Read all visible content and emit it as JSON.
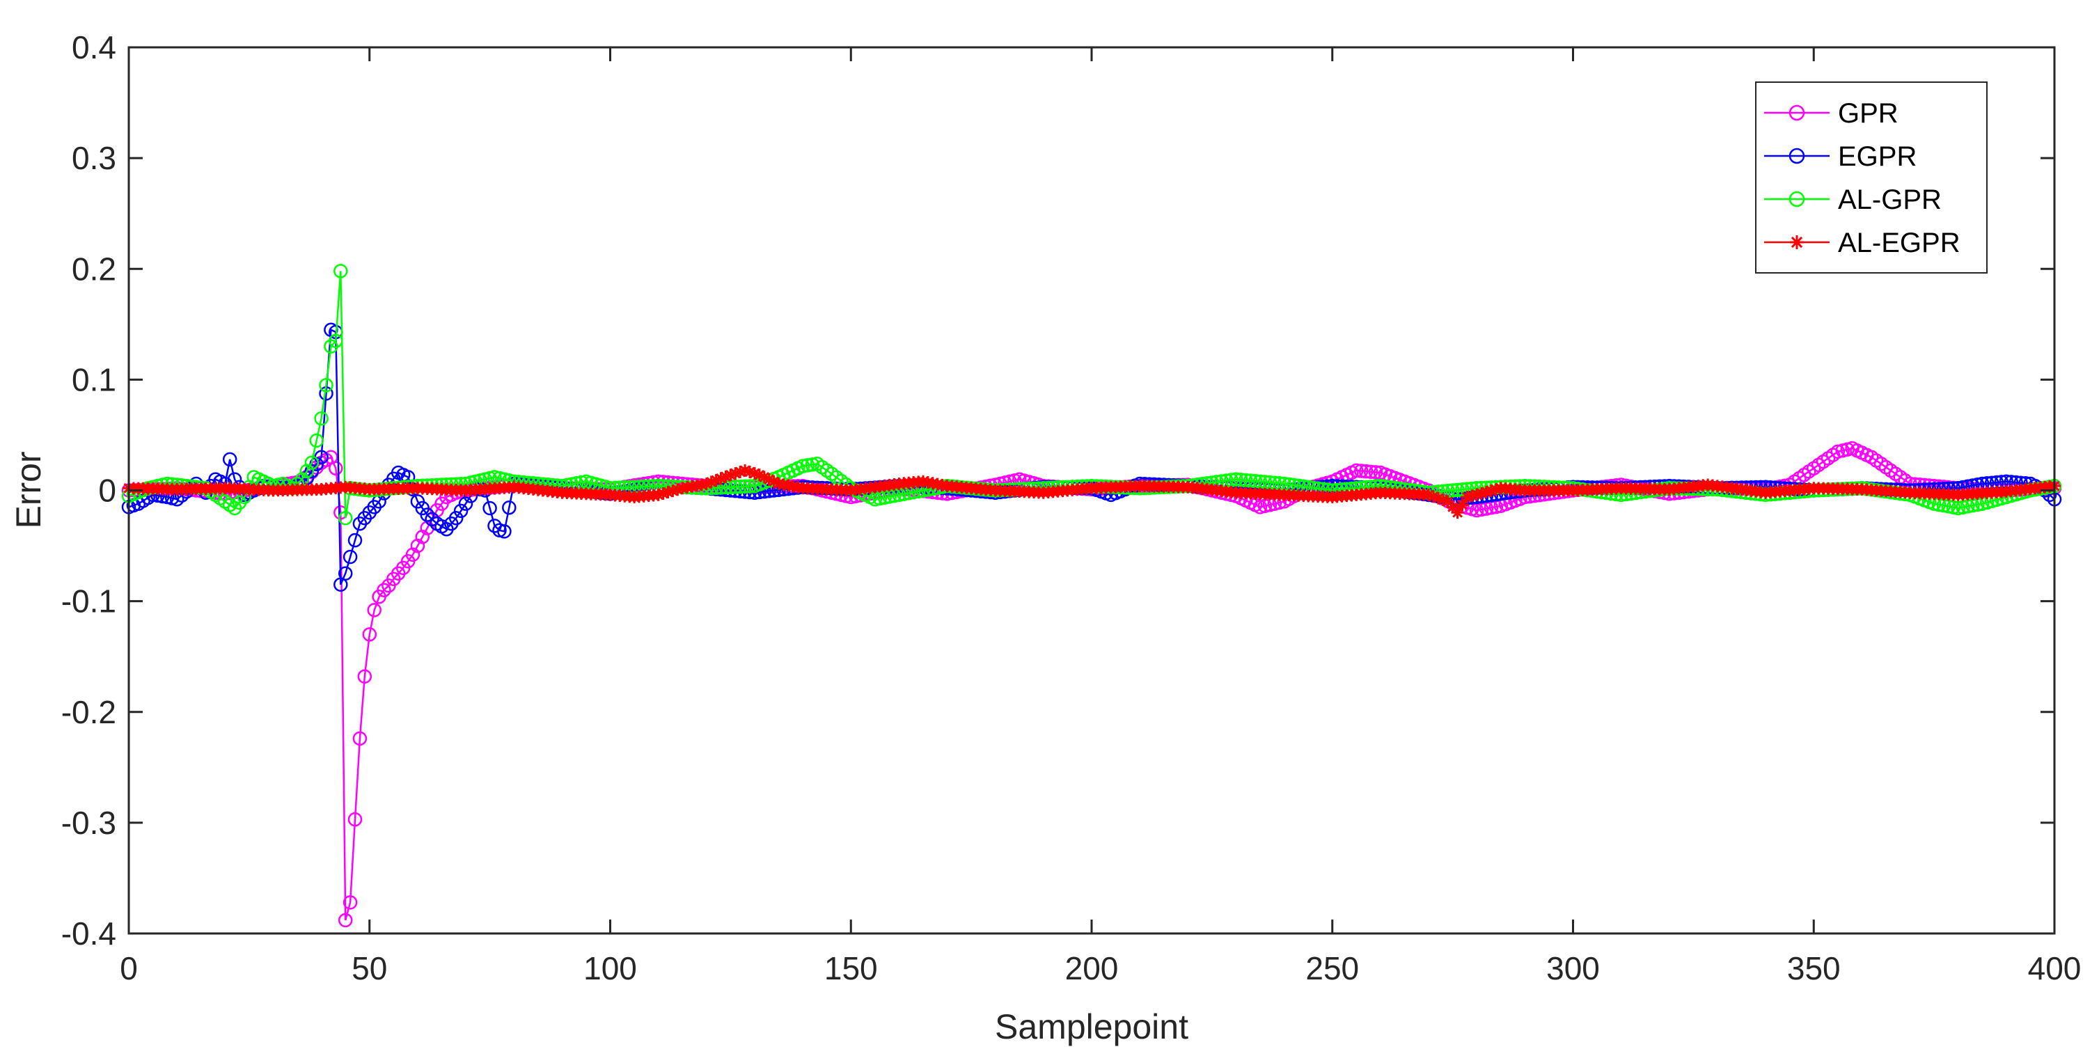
{
  "chart_data": {
    "type": "line",
    "title": "",
    "xlabel": "Samplepoint",
    "ylabel": "Error",
    "xlim": [
      0,
      400
    ],
    "ylim": [
      -0.4,
      0.4
    ],
    "xticks": [
      0,
      50,
      100,
      150,
      200,
      250,
      300,
      350,
      400
    ],
    "yticks": [
      -0.4,
      -0.3,
      -0.2,
      -0.1,
      0,
      0.1,
      0.2,
      0.3,
      0.4
    ],
    "xtick_labels": [
      "0",
      "50",
      "100",
      "150",
      "200",
      "250",
      "300",
      "350",
      "400"
    ],
    "ytick_labels": [
      "-0.4",
      "-0.3",
      "-0.2",
      "-0.1",
      "0",
      "0.1",
      "0.2",
      "0.3",
      "0.4"
    ],
    "grid": false,
    "legend_position": "top-right",
    "series": [
      {
        "name": "GPR",
        "color": "#ff00ff",
        "marker": "circle",
        "points": [
          [
            0,
            0
          ],
          [
            10,
            0.002
          ],
          [
            20,
            -0.003
          ],
          [
            30,
            0.004
          ],
          [
            36,
            0.008
          ],
          [
            40,
            0.025
          ],
          [
            42,
            0.03
          ],
          [
            43,
            0.02
          ],
          [
            44,
            -0.02
          ],
          [
            45,
            -0.388
          ],
          [
            46,
            -0.372
          ],
          [
            47,
            -0.297
          ],
          [
            48,
            -0.224
          ],
          [
            49,
            -0.168
          ],
          [
            50,
            -0.13
          ],
          [
            51,
            -0.108
          ],
          [
            52,
            -0.096
          ],
          [
            53,
            -0.09
          ],
          [
            54,
            -0.086
          ],
          [
            55,
            -0.08
          ],
          [
            56,
            -0.075
          ],
          [
            57,
            -0.07
          ],
          [
            58,
            -0.064
          ],
          [
            59,
            -0.058
          ],
          [
            60,
            -0.05
          ],
          [
            61,
            -0.042
          ],
          [
            62,
            -0.034
          ],
          [
            63,
            -0.026
          ],
          [
            64,
            -0.018
          ],
          [
            65,
            -0.012
          ],
          [
            66,
            -0.006
          ],
          [
            68,
            -0.002
          ],
          [
            70,
            0
          ],
          [
            80,
            0.005
          ],
          [
            90,
            0.002
          ],
          [
            100,
            0.001
          ],
          [
            110,
            0.008
          ],
          [
            120,
            0.004
          ],
          [
            130,
            0.003
          ],
          [
            140,
            0.004
          ],
          [
            150,
            -0.006
          ],
          [
            160,
            0.002
          ],
          [
            170,
            -0.003
          ],
          [
            180,
            0.005
          ],
          [
            185,
            0.01
          ],
          [
            190,
            0.004
          ],
          [
            200,
            0.001
          ],
          [
            210,
            0.004
          ],
          [
            220,
            0.005
          ],
          [
            230,
            -0.005
          ],
          [
            235,
            -0.015
          ],
          [
            240,
            -0.01
          ],
          [
            245,
            0.002
          ],
          [
            250,
            0.008
          ],
          [
            255,
            0.018
          ],
          [
            260,
            0.016
          ],
          [
            265,
            0.008
          ],
          [
            270,
            0
          ],
          [
            275,
            -0.012
          ],
          [
            280,
            -0.018
          ],
          [
            285,
            -0.014
          ],
          [
            290,
            -0.006
          ],
          [
            300,
            0
          ],
          [
            310,
            0.005
          ],
          [
            320,
            -0.003
          ],
          [
            330,
            0.002
          ],
          [
            340,
            0.001
          ],
          [
            345,
            0.005
          ],
          [
            350,
            0.02
          ],
          [
            355,
            0.035
          ],
          [
            358,
            0.038
          ],
          [
            362,
            0.03
          ],
          [
            366,
            0.018
          ],
          [
            370,
            0.006
          ],
          [
            380,
            0.002
          ],
          [
            390,
            0
          ],
          [
            400,
            0.002
          ]
        ]
      },
      {
        "name": "EGPR",
        "color": "#0000ff",
        "marker": "circle",
        "points": [
          [
            0,
            -0.015
          ],
          [
            2,
            -0.012
          ],
          [
            5,
            -0.004
          ],
          [
            8,
            -0.006
          ],
          [
            10,
            -0.008
          ],
          [
            14,
            0.006
          ],
          [
            16,
            -0.002
          ],
          [
            18,
            0.01
          ],
          [
            20,
            0.006
          ],
          [
            21,
            0.028
          ],
          [
            22,
            0.01
          ],
          [
            24,
            -0.004
          ],
          [
            28,
            0.004
          ],
          [
            32,
            0.002
          ],
          [
            36,
            0.005
          ],
          [
            40,
            0.03
          ],
          [
            42,
            0.145
          ],
          [
            43,
            0.143
          ],
          [
            44,
            -0.085
          ],
          [
            45,
            -0.075
          ],
          [
            46,
            -0.06
          ],
          [
            47,
            -0.045
          ],
          [
            48,
            -0.03
          ],
          [
            50,
            -0.02
          ],
          [
            52,
            -0.01
          ],
          [
            54,
            0.005
          ],
          [
            56,
            0.016
          ],
          [
            58,
            0.012
          ],
          [
            60,
            -0.01
          ],
          [
            62,
            -0.022
          ],
          [
            64,
            -0.03
          ],
          [
            66,
            -0.035
          ],
          [
            68,
            -0.025
          ],
          [
            70,
            -0.012
          ],
          [
            72,
            0.002
          ],
          [
            74,
            0
          ],
          [
            76,
            -0.032
          ],
          [
            77,
            -0.036
          ],
          [
            78,
            -0.037
          ],
          [
            80,
            0.006
          ],
          [
            90,
            0.002
          ],
          [
            100,
            -0.003
          ],
          [
            110,
            0.004
          ],
          [
            120,
            0.002
          ],
          [
            130,
            -0.002
          ],
          [
            140,
            0.003
          ],
          [
            150,
            0.001
          ],
          [
            160,
            0.004
          ],
          [
            170,
            0.002
          ],
          [
            180,
            -0.002
          ],
          [
            190,
            0.003
          ],
          [
            200,
            0.002
          ],
          [
            204,
            -0.004
          ],
          [
            210,
            0.006
          ],
          [
            220,
            0.004
          ],
          [
            230,
            0.002
          ],
          [
            240,
            0
          ],
          [
            250,
            0.004
          ],
          [
            260,
            0.002
          ],
          [
            270,
            -0.004
          ],
          [
            276,
            -0.008
          ],
          [
            280,
            -0.006
          ],
          [
            290,
            0
          ],
          [
            300,
            0.003
          ],
          [
            310,
            0.002
          ],
          [
            320,
            0.004
          ],
          [
            330,
            0.002
          ],
          [
            340,
            0.003
          ],
          [
            350,
            0
          ],
          [
            360,
            0.002
          ],
          [
            370,
            0
          ],
          [
            380,
            0.002
          ],
          [
            385,
            0.006
          ],
          [
            390,
            0.008
          ],
          [
            395,
            0.006
          ],
          [
            398,
            0
          ],
          [
            400,
            -0.008
          ]
        ]
      },
      {
        "name": "AL-GPR",
        "color": "#00ff00",
        "marker": "circle",
        "points": [
          [
            0,
            -0.005
          ],
          [
            4,
            0.002
          ],
          [
            8,
            0.006
          ],
          [
            12,
            0.004
          ],
          [
            16,
            0.002
          ],
          [
            20,
            -0.01
          ],
          [
            22,
            -0.016
          ],
          [
            24,
            -0.006
          ],
          [
            26,
            0.012
          ],
          [
            30,
            0.004
          ],
          [
            32,
            0.006
          ],
          [
            34,
            0.002
          ],
          [
            36,
            0.01
          ],
          [
            38,
            0.025
          ],
          [
            39,
            0.045
          ],
          [
            40,
            0.065
          ],
          [
            41,
            0.095
          ],
          [
            42,
            0.13
          ],
          [
            43,
            0.135
          ],
          [
            44,
            0.198
          ],
          [
            45,
            -0.025
          ],
          [
            46,
            0.002
          ],
          [
            50,
            0
          ],
          [
            60,
            0.004
          ],
          [
            70,
            0.006
          ],
          [
            76,
            0.012
          ],
          [
            80,
            0.008
          ],
          [
            90,
            0.004
          ],
          [
            95,
            0.008
          ],
          [
            100,
            0.002
          ],
          [
            110,
            0.004
          ],
          [
            120,
            0.002
          ],
          [
            130,
            0.004
          ],
          [
            135,
            0.012
          ],
          [
            140,
            0.022
          ],
          [
            143,
            0.024
          ],
          [
            146,
            0.015
          ],
          [
            150,
            0.002
          ],
          [
            155,
            -0.008
          ],
          [
            160,
            -0.004
          ],
          [
            170,
            0.004
          ],
          [
            180,
            0
          ],
          [
            190,
            0.002
          ],
          [
            200,
            0.004
          ],
          [
            210,
            0.002
          ],
          [
            220,
            0.004
          ],
          [
            230,
            0.01
          ],
          [
            240,
            0.006
          ],
          [
            250,
            0
          ],
          [
            260,
            0.004
          ],
          [
            270,
            -0.002
          ],
          [
            280,
            0.002
          ],
          [
            290,
            0.004
          ],
          [
            300,
            0.002
          ],
          [
            310,
            -0.004
          ],
          [
            320,
            0.002
          ],
          [
            330,
            0.001
          ],
          [
            340,
            -0.004
          ],
          [
            350,
            0
          ],
          [
            360,
            0.002
          ],
          [
            370,
            -0.004
          ],
          [
            375,
            -0.012
          ],
          [
            380,
            -0.016
          ],
          [
            385,
            -0.012
          ],
          [
            390,
            -0.006
          ],
          [
            395,
            0
          ],
          [
            400,
            0.004
          ]
        ]
      },
      {
        "name": "AL-EGPR",
        "color": "#ff0000",
        "marker": "star",
        "points": [
          [
            0,
            0.002
          ],
          [
            10,
            0.001
          ],
          [
            20,
            0.002
          ],
          [
            30,
            0
          ],
          [
            40,
            0.001
          ],
          [
            45,
            0.003
          ],
          [
            50,
            0.001
          ],
          [
            60,
            0.002
          ],
          [
            70,
            0
          ],
          [
            80,
            0.003
          ],
          [
            90,
            -0.002
          ],
          [
            100,
            -0.004
          ],
          [
            105,
            -0.006
          ],
          [
            110,
            -0.004
          ],
          [
            115,
            0.002
          ],
          [
            120,
            0.006
          ],
          [
            125,
            0.014
          ],
          [
            128,
            0.018
          ],
          [
            131,
            0.014
          ],
          [
            135,
            0.006
          ],
          [
            140,
            0.002
          ],
          [
            150,
            0
          ],
          [
            160,
            0.006
          ],
          [
            165,
            0.008
          ],
          [
            170,
            0.004
          ],
          [
            180,
            0
          ],
          [
            190,
            -0.002
          ],
          [
            200,
            0.002
          ],
          [
            210,
            0.004
          ],
          [
            220,
            0.003
          ],
          [
            230,
            -0.002
          ],
          [
            240,
            -0.004
          ],
          [
            250,
            -0.006
          ],
          [
            260,
            -0.002
          ],
          [
            270,
            -0.004
          ],
          [
            274,
            -0.01
          ],
          [
            276,
            -0.02
          ],
          [
            278,
            -0.006
          ],
          [
            285,
            0.002
          ],
          [
            290,
            0
          ],
          [
            300,
            0
          ],
          [
            310,
            0.002
          ],
          [
            320,
            0.001
          ],
          [
            328,
            0.005
          ],
          [
            335,
            0.001
          ],
          [
            340,
            -0.002
          ],
          [
            350,
            0.002
          ],
          [
            360,
            0.001
          ],
          [
            370,
            -0.002
          ],
          [
            380,
            -0.004
          ],
          [
            390,
            -0.001
          ],
          [
            400,
            0.004
          ]
        ]
      }
    ]
  }
}
